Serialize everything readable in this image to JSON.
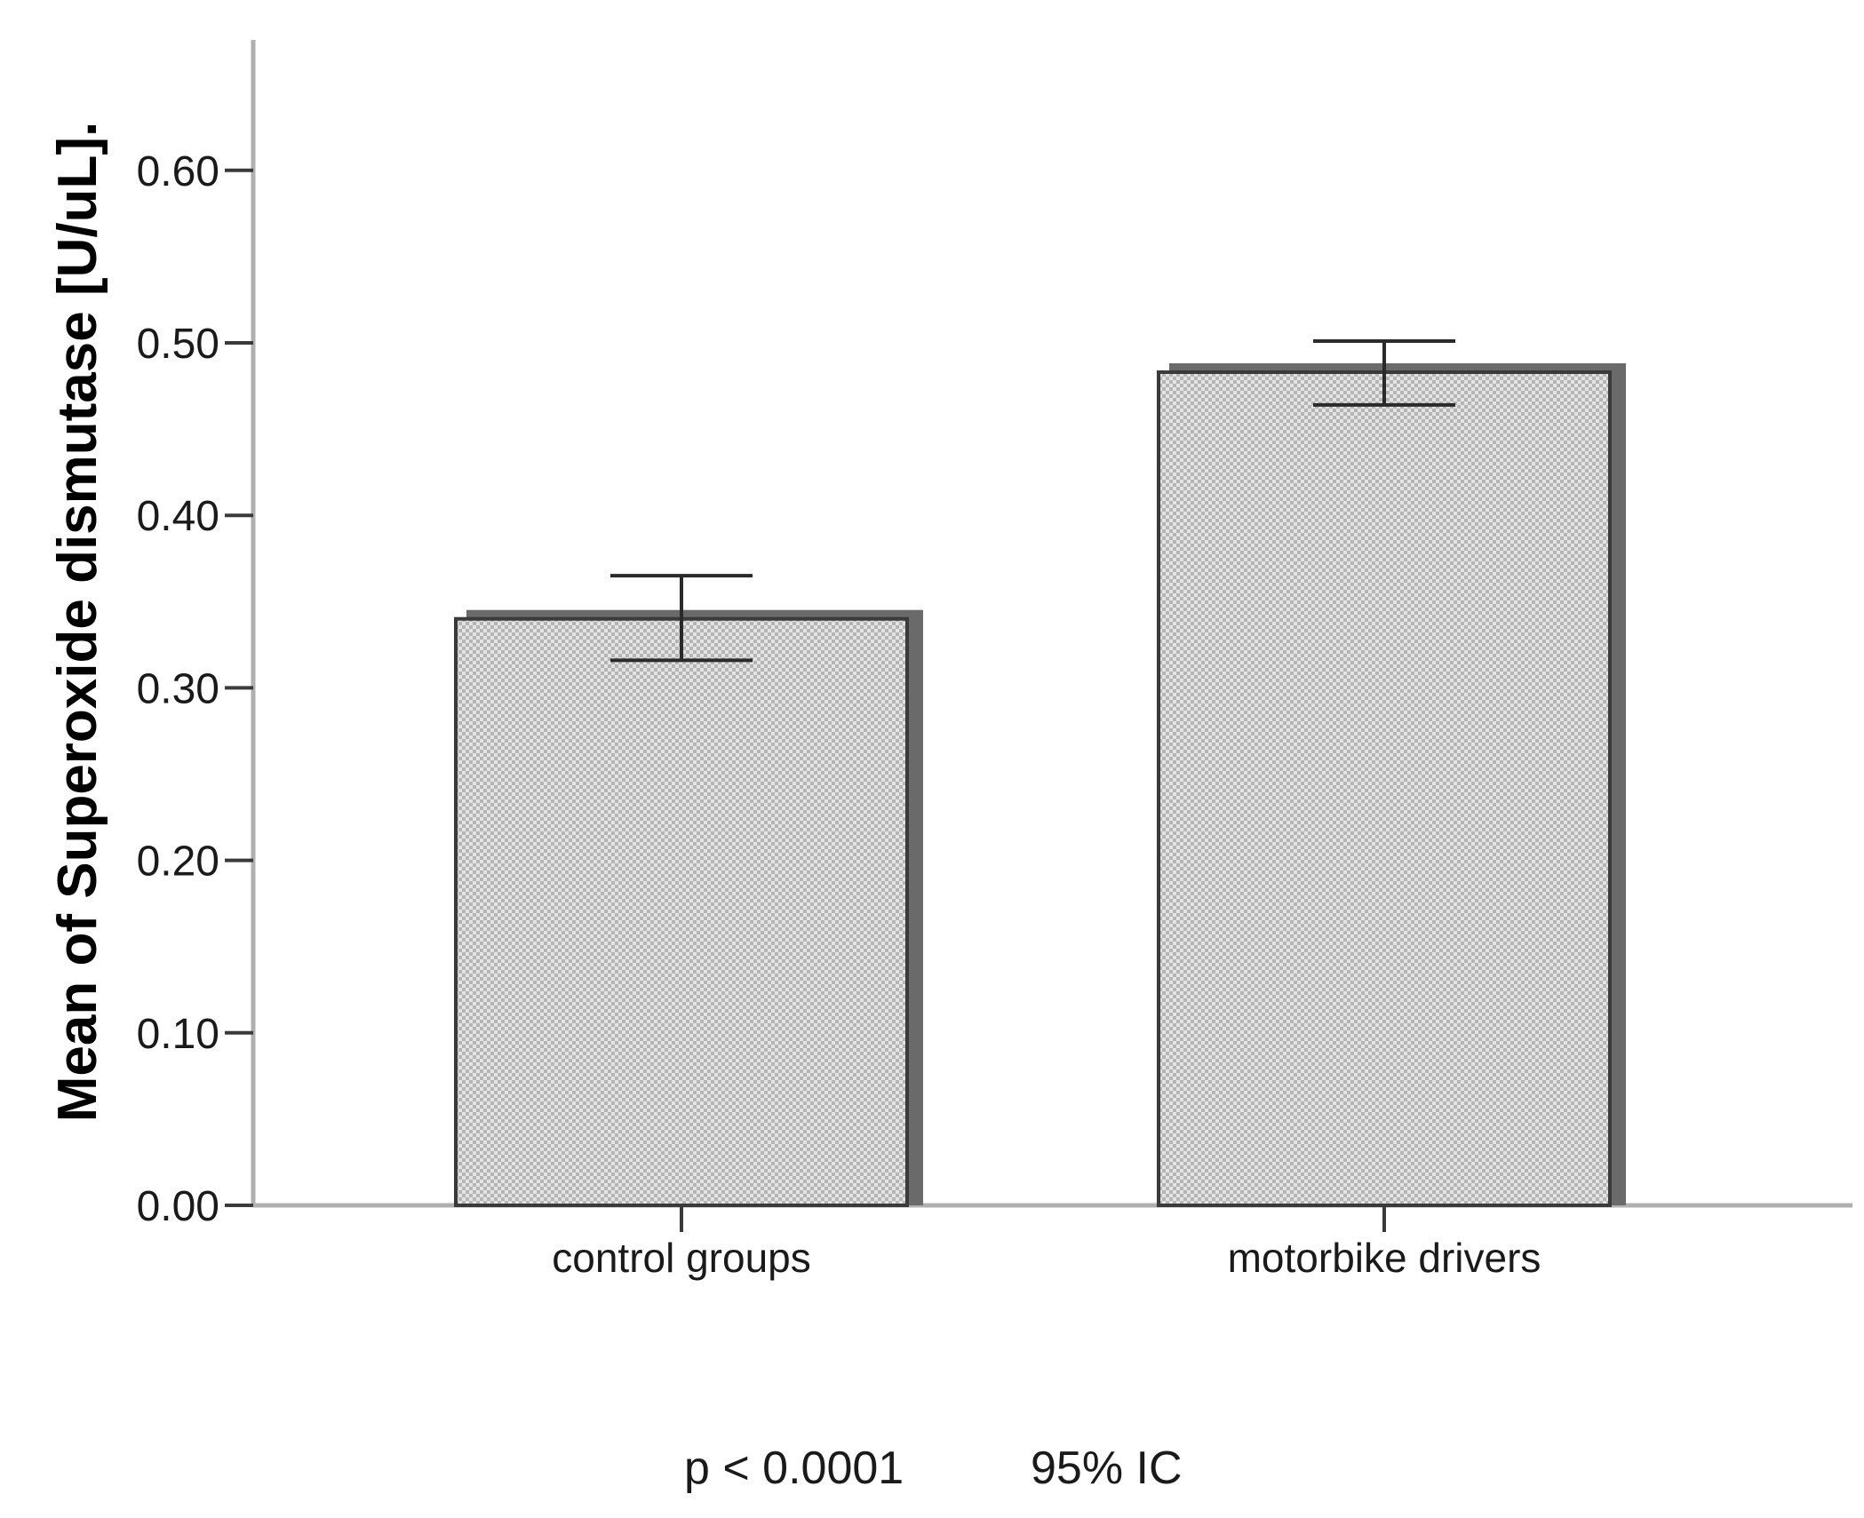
{
  "chart_data": {
    "type": "bar",
    "categories": [
      "control groups",
      "motorbike drivers"
    ],
    "values": [
      0.34,
      0.483
    ],
    "error_bars": [
      {
        "lower": 0.316,
        "upper": 0.365
      },
      {
        "lower": 0.464,
        "upper": 0.501
      }
    ],
    "title": "",
    "xlabel": "",
    "ylabel": "Mean of Superoxide dismutase [U/uL].",
    "ylim": [
      0,
      0.67
    ],
    "yticks": [
      0.0,
      0.1,
      0.2,
      0.3,
      0.4,
      0.5,
      0.6
    ],
    "ytick_labels": [
      "0.00",
      "0.10",
      "0.20",
      "0.30",
      "0.40",
      "0.50",
      "0.60"
    ],
    "grid": false,
    "legend": "none",
    "bar_pattern": "dotted-grey",
    "annotations": {
      "p_value": "p < 0.0001",
      "confidence": "95% IC"
    }
  }
}
